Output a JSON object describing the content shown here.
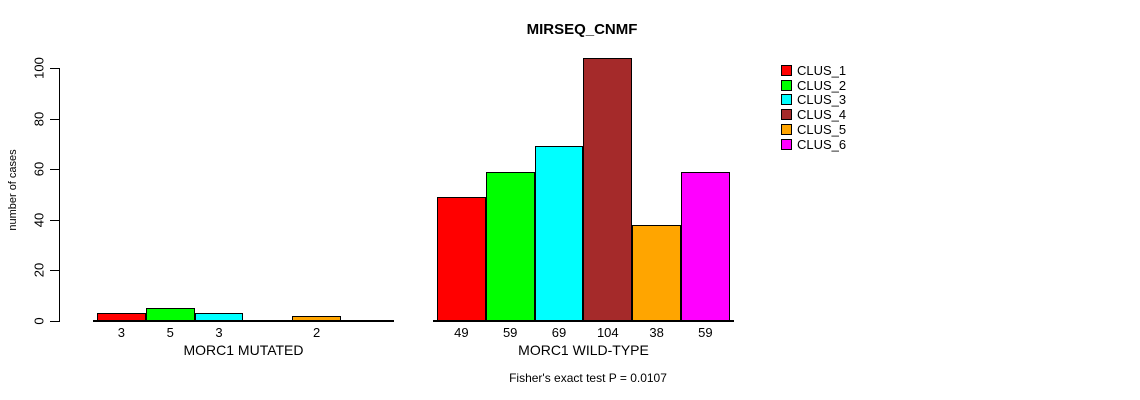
{
  "title": "MIRSEQ_CNMF",
  "y_axis": {
    "label": "number of cases",
    "ticks": [
      "0",
      "20",
      "40",
      "60",
      "80",
      "100"
    ]
  },
  "footer": "Fisher's exact test P = 0.0107",
  "legend": [
    {
      "label": "CLUS_1",
      "color": "#FF0000"
    },
    {
      "label": "CLUS_2",
      "color": "#00FF00"
    },
    {
      "label": "CLUS_3",
      "color": "#00FFFF"
    },
    {
      "label": "CLUS_4",
      "color": "#A52A2A"
    },
    {
      "label": "CLUS_5",
      "color": "#FFA500"
    },
    {
      "label": "CLUS_6",
      "color": "#FF00FF"
    }
  ],
  "chart_data": {
    "type": "bar",
    "title": "MIRSEQ_CNMF",
    "ylabel": "number of cases",
    "ylim": [
      0,
      104
    ],
    "yticks": [
      0,
      20,
      40,
      60,
      80,
      100
    ],
    "grid": false,
    "legend_position": "right",
    "categories": [
      "CLUS_1",
      "CLUS_2",
      "CLUS_3",
      "CLUS_4",
      "CLUS_5",
      "CLUS_6"
    ],
    "colors": [
      "#FF0000",
      "#00FF00",
      "#00FFFF",
      "#A52A2A",
      "#FFA500",
      "#FF00FF"
    ],
    "groups": [
      {
        "label": "MORC1 MUTATED",
        "values": [
          3,
          5,
          3,
          0,
          2,
          0
        ]
      },
      {
        "label": "MORC1 WILD-TYPE",
        "values": [
          49,
          59,
          69,
          104,
          38,
          59
        ]
      }
    ],
    "annotation": "Fisher's exact test P = 0.0107"
  }
}
